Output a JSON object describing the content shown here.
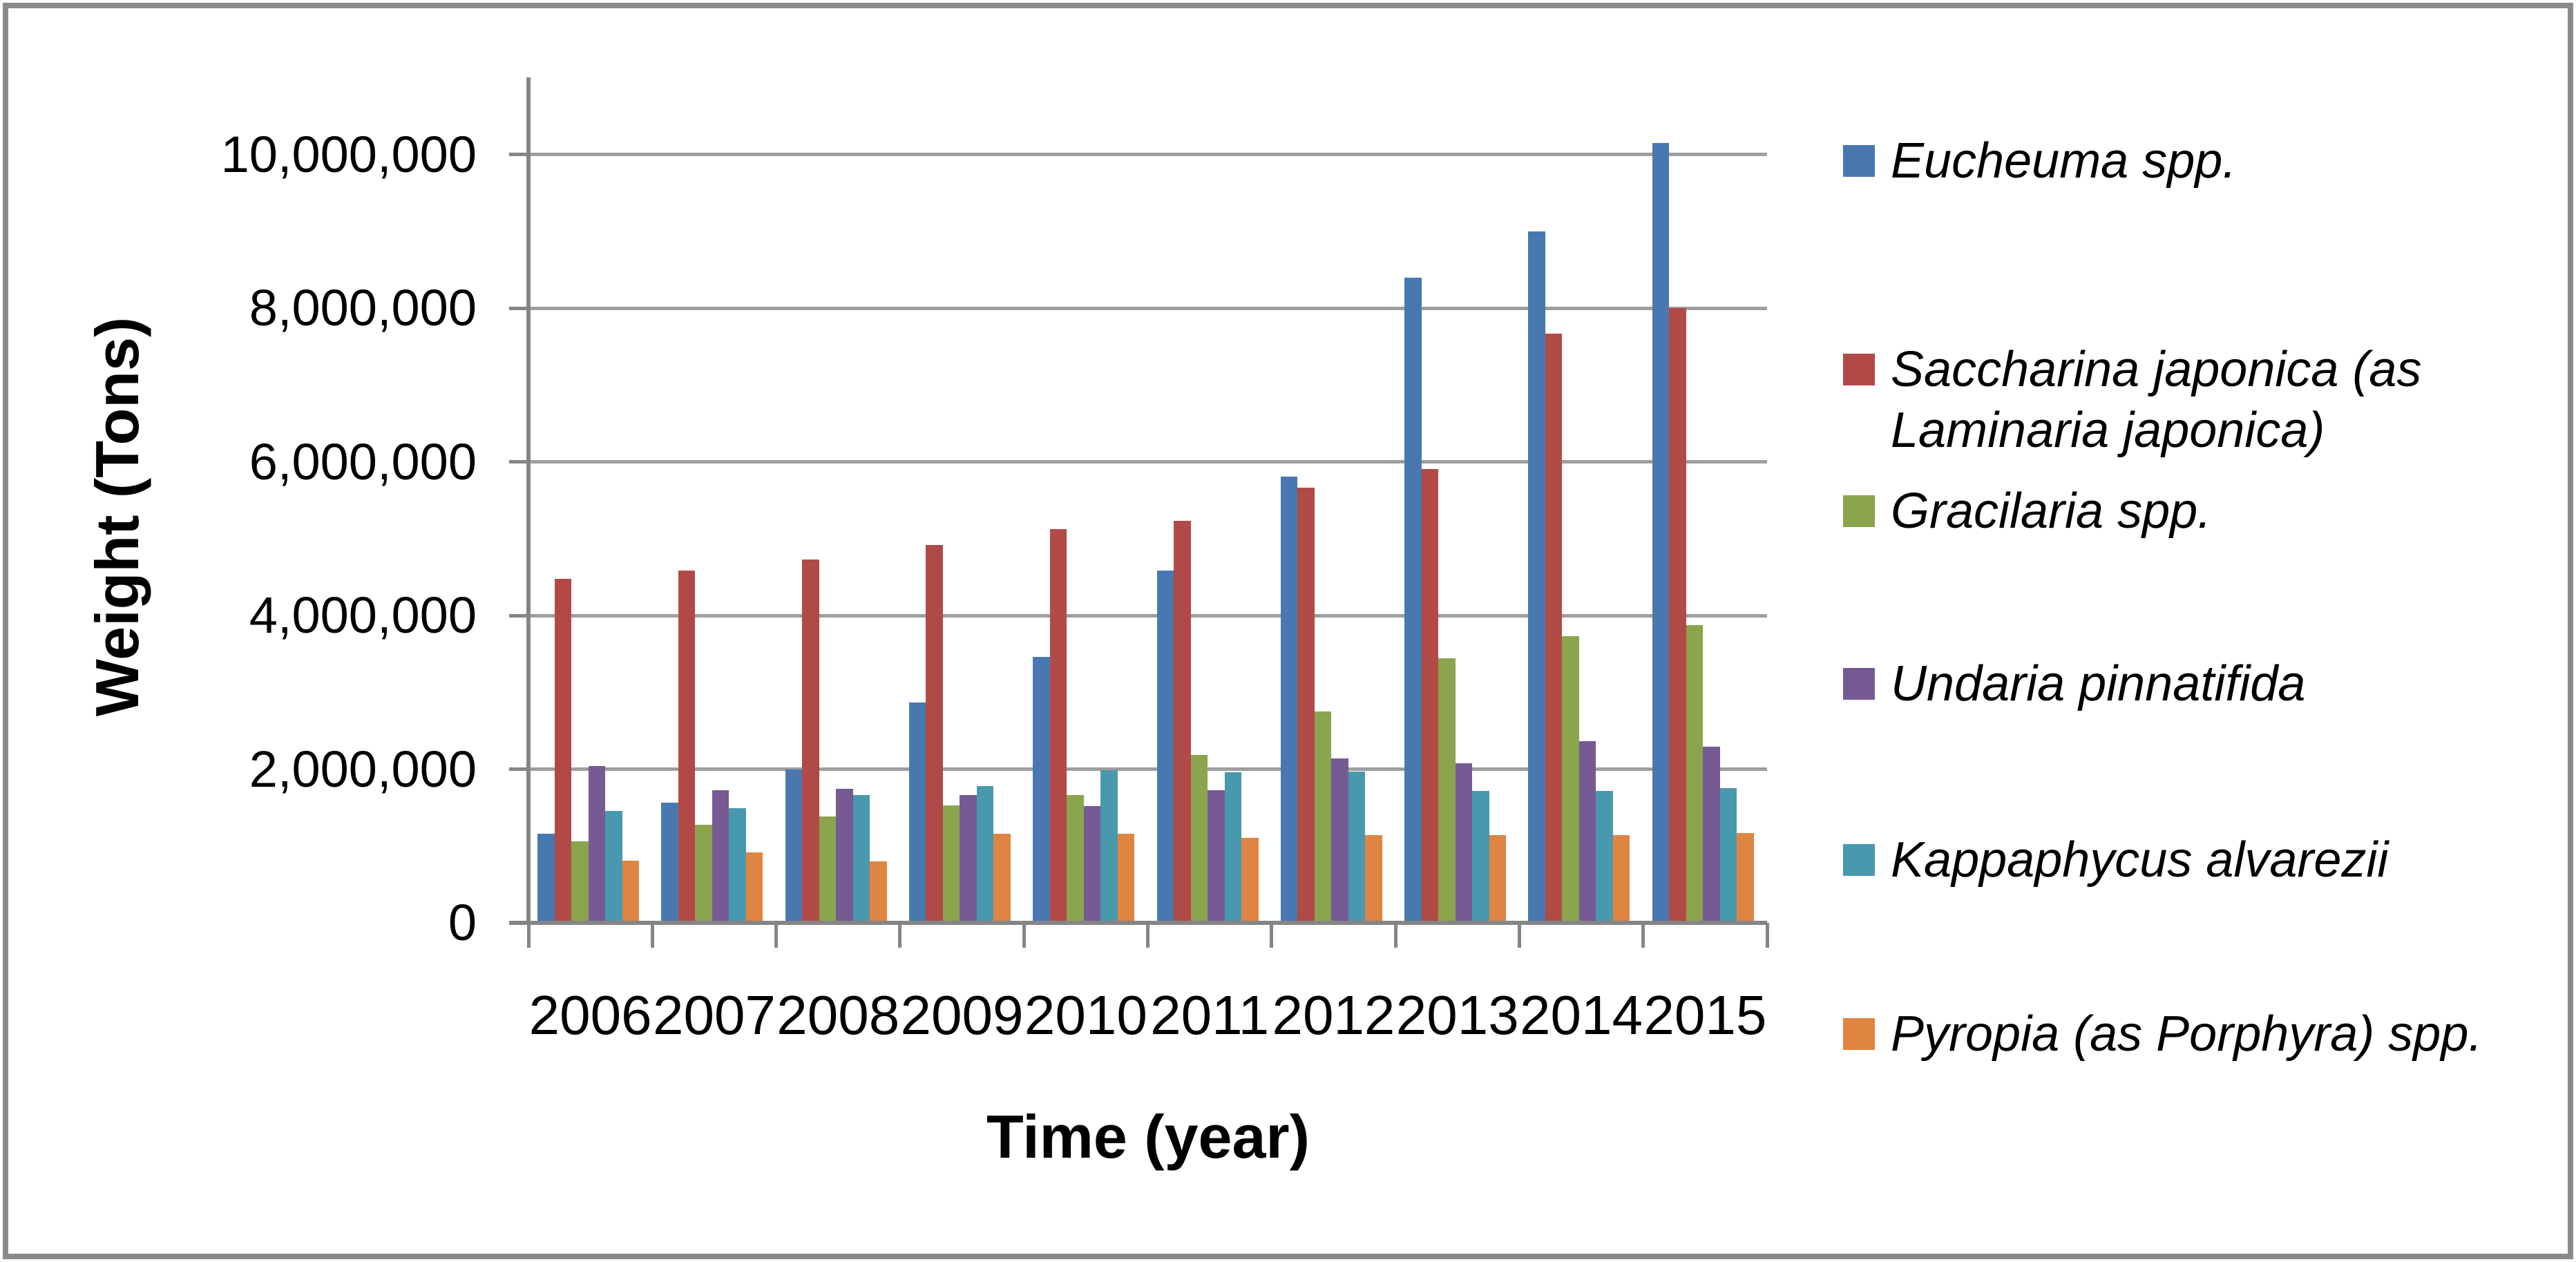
{
  "chart_data": {
    "type": "bar",
    "title": "",
    "xlabel": "Time (year)",
    "ylabel": "Weight (Tons)",
    "categories": [
      "2006",
      "2007",
      "2008",
      "2009",
      "2010",
      "2011",
      "2012",
      "2013",
      "2014",
      "2015"
    ],
    "series": [
      {
        "name": "Eucheuma spp.",
        "color": "#4978B1",
        "values": [
          1160000,
          1560000,
          2000000,
          2870000,
          3460000,
          4580000,
          5810000,
          8400000,
          9000000,
          10150000
        ]
      },
      {
        "name": "Saccharina japonica (as Laminaria japonica)",
        "color": "#B14A47",
        "values": [
          4480000,
          4580000,
          4730000,
          4920000,
          5120000,
          5230000,
          5660000,
          5910000,
          7670000,
          8000000
        ]
      },
      {
        "name": "Gracilaria spp.",
        "color": "#8BA44E",
        "values": [
          1060000,
          1280000,
          1380000,
          1530000,
          1660000,
          2180000,
          2750000,
          3440000,
          3730000,
          3870000
        ]
      },
      {
        "name": "Undaria pinnatifida",
        "color": "#765A93",
        "values": [
          2040000,
          1730000,
          1740000,
          1660000,
          1520000,
          1730000,
          2140000,
          2080000,
          2360000,
          2290000
        ]
      },
      {
        "name": "Kappaphycus alvarezii",
        "color": "#4899AE",
        "values": [
          1460000,
          1490000,
          1660000,
          1780000,
          1990000,
          1960000,
          1970000,
          1720000,
          1720000,
          1750000
        ]
      },
      {
        "name": "Pyropia (as Porphyra) spp.",
        "color": "#E08442",
        "values": [
          810000,
          920000,
          800000,
          1160000,
          1160000,
          1110000,
          1140000,
          1140000,
          1140000,
          1170000
        ]
      }
    ],
    "y_axis": {
      "min": 0,
      "max": 10000000,
      "tick_interval": 2000000,
      "tick_labels": [
        "0",
        "2,000,000",
        "4,000,000",
        "6,000,000",
        "8,000,000",
        "10,000,000"
      ]
    },
    "legend_position": "right",
    "grid": true
  },
  "colors": {
    "background": "#ffffff",
    "frame": "#8a8a8a",
    "gridline": "#9e9e9e",
    "axis": "#858585",
    "text": "#000000"
  }
}
